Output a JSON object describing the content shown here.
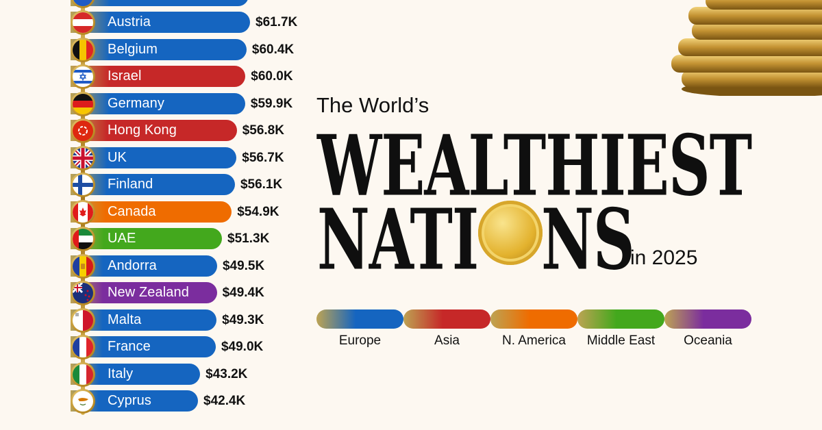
{
  "chart_data": {
    "type": "bar",
    "orientation": "horizontal",
    "categories": [
      "Austria",
      "Belgium",
      "Israel",
      "Germany",
      "Hong Kong",
      "UK",
      "Finland",
      "Canada",
      "UAE",
      "Andorra",
      "New Zealand",
      "Malta",
      "France",
      "Italy",
      "Cyprus"
    ],
    "values": [
      61.7,
      60.4,
      60.0,
      59.9,
      56.8,
      56.7,
      56.1,
      54.9,
      51.3,
      49.5,
      49.4,
      49.3,
      49.0,
      43.2,
      42.4
    ],
    "value_labels": [
      "$61.7K",
      "$60.4K",
      "$60.0K",
      "$59.9K",
      "$56.8K",
      "$56.7K",
      "$56.1K",
      "$54.9K",
      "$51.3K",
      "$49.5K",
      "$49.4K",
      "$49.3K",
      "$49.0K",
      "$43.2K",
      "$42.4K"
    ],
    "regions": [
      "Europe",
      "Europe",
      "Asia",
      "Europe",
      "Asia",
      "Europe",
      "Europe",
      "N. America",
      "Middle East",
      "Europe",
      "Oceania",
      "Europe",
      "Europe",
      "Europe",
      "Europe"
    ],
    "flags": [
      "austria-flag-icon",
      "belgium-flag-icon",
      "israel-flag-icon",
      "germany-flag-icon",
      "hong-kong-flag-icon",
      "uk-flag-icon",
      "finland-flag-icon",
      "canada-flag-icon",
      "uae-flag-icon",
      "andorra-flag-icon",
      "new-zealand-flag-icon",
      "malta-flag-icon",
      "france-flag-icon",
      "italy-flag-icon",
      "cyprus-flag-icon"
    ],
    "legend": [
      {
        "name": "Europe",
        "color": "#1565c0"
      },
      {
        "name": "Asia",
        "color": "#c62828"
      },
      {
        "name": "N. America",
        "color": "#ef6c00"
      },
      {
        "name": "Middle East",
        "color": "#43a81d"
      },
      {
        "name": "Oceania",
        "color": "#7b2d9e"
      }
    ],
    "legend_placement": "right",
    "grid": false
  },
  "title": {
    "line1": "The World’s",
    "line2": "WEALTHIEST",
    "line3_part1": "NAT",
    "line3_part2": "I",
    "line3_part3": "NS",
    "line4": "in 2025"
  },
  "images": {
    "coin_stack": "gold-coin-stack-icon",
    "title_o": "gold-coin-icon"
  }
}
